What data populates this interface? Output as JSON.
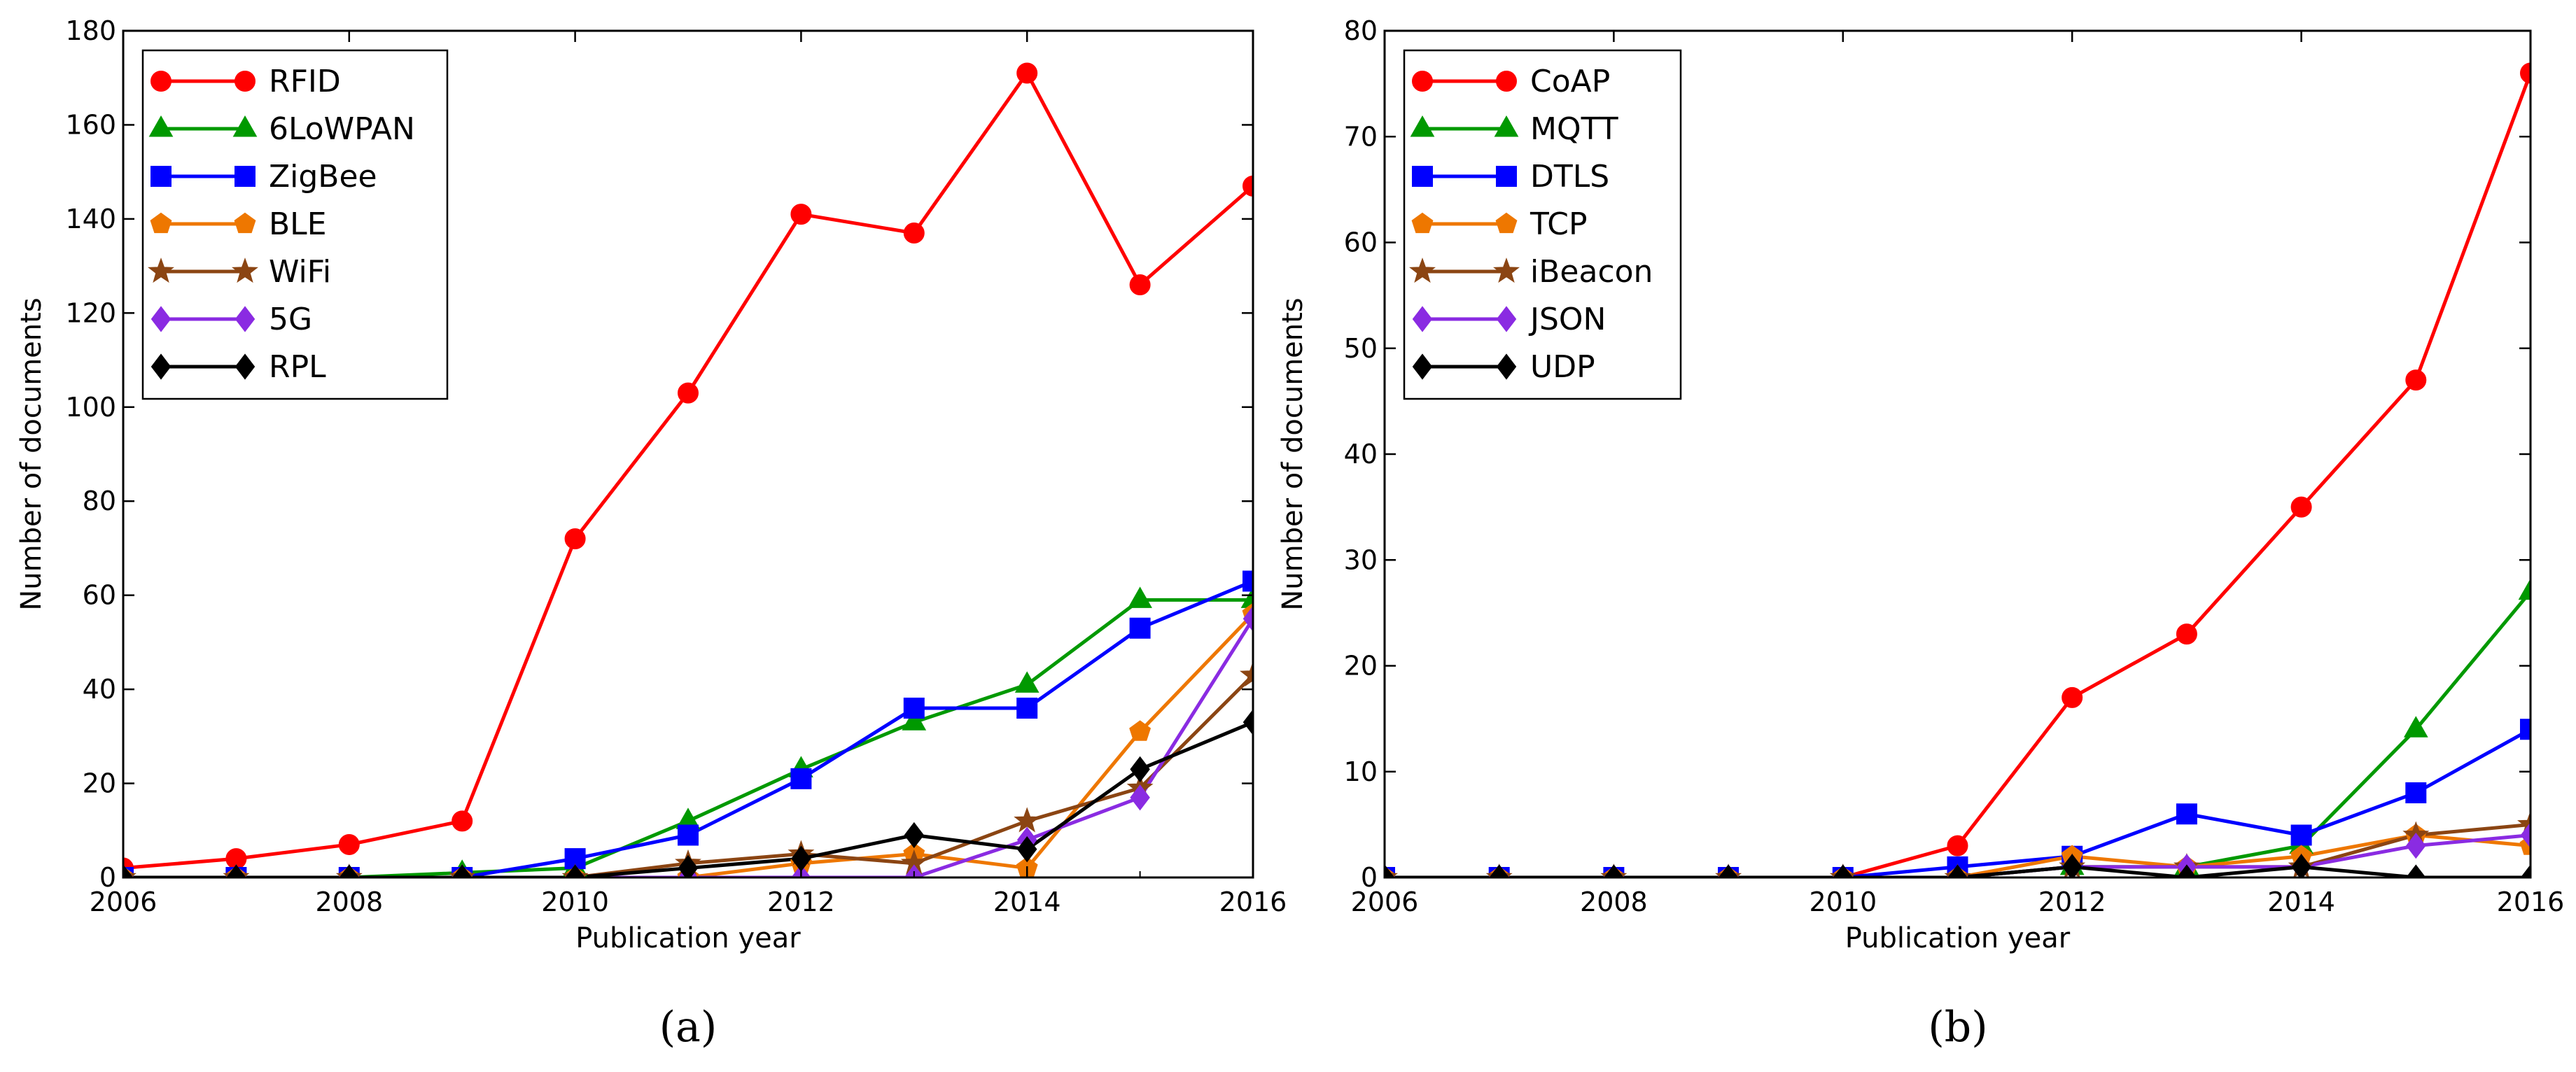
{
  "chart_data": [
    {
      "type": "line",
      "panel_label": "(a)",
      "xlabel": "Publication year",
      "ylabel": "Number of documents",
      "xlim": [
        2006,
        2016
      ],
      "ylim": [
        0,
        180
      ],
      "xticks": [
        "2006",
        "2008",
        "2010",
        "2012",
        "2014",
        "2016"
      ],
      "yticks": [
        "0",
        "20",
        "40",
        "60",
        "80",
        "100",
        "120",
        "140",
        "160",
        "180"
      ],
      "legend_position": "upper-left",
      "x": [
        2006,
        2007,
        2008,
        2009,
        2010,
        2011,
        2012,
        2013,
        2014,
        2015,
        2016
      ],
      "series": [
        {
          "name": "RFID",
          "color": "#ff0000",
          "marker": "circle",
          "values": [
            2,
            4,
            7,
            12,
            72,
            103,
            141,
            137,
            171,
            126,
            147
          ]
        },
        {
          "name": "6LoWPAN",
          "color": "#009900",
          "marker": "triangle",
          "values": [
            0,
            0,
            0,
            1,
            2,
            12,
            23,
            33,
            41,
            59,
            59
          ]
        },
        {
          "name": "ZigBee",
          "color": "#0000ff",
          "marker": "square",
          "values": [
            0,
            0,
            0,
            0,
            4,
            9,
            21,
            36,
            36,
            53,
            63
          ]
        },
        {
          "name": "BLE",
          "color": "#ee7700",
          "marker": "pentagon",
          "values": [
            0,
            0,
            0,
            0,
            0,
            0,
            3,
            5,
            2,
            31,
            56
          ]
        },
        {
          "name": "WiFi",
          "color": "#8b4513",
          "marker": "star",
          "values": [
            0,
            0,
            0,
            0,
            0,
            3,
            5,
            3,
            12,
            19,
            43
          ]
        },
        {
          "name": "5G",
          "color": "#8a2be2",
          "marker": "diamond",
          "values": [
            0,
            0,
            0,
            0,
            0,
            0,
            0,
            0,
            8,
            17,
            55
          ]
        },
        {
          "name": "RPL",
          "color": "#000000",
          "marker": "diamond",
          "values": [
            0,
            0,
            0,
            0,
            0,
            2,
            4,
            9,
            6,
            23,
            33
          ]
        }
      ]
    },
    {
      "type": "line",
      "panel_label": "(b)",
      "xlabel": "Publication year",
      "ylabel": "Number of documents",
      "xlim": [
        2006,
        2016
      ],
      "ylim": [
        0,
        80
      ],
      "xticks": [
        "2006",
        "2008",
        "2010",
        "2012",
        "2014",
        "2016"
      ],
      "yticks": [
        "0",
        "10",
        "20",
        "30",
        "40",
        "50",
        "60",
        "70",
        "80"
      ],
      "legend_position": "upper-left",
      "x": [
        2006,
        2007,
        2008,
        2009,
        2010,
        2011,
        2012,
        2013,
        2014,
        2015,
        2016
      ],
      "series": [
        {
          "name": "CoAP",
          "color": "#ff0000",
          "marker": "circle",
          "values": [
            0,
            0,
            0,
            0,
            0,
            3,
            17,
            23,
            35,
            47,
            76
          ]
        },
        {
          "name": "MQTT",
          "color": "#009900",
          "marker": "triangle",
          "values": [
            0,
            0,
            0,
            0,
            0,
            0,
            1,
            1,
            3,
            14,
            27
          ]
        },
        {
          "name": "DTLS",
          "color": "#0000ff",
          "marker": "square",
          "values": [
            0,
            0,
            0,
            0,
            0,
            1,
            2,
            6,
            4,
            8,
            14
          ]
        },
        {
          "name": "TCP",
          "color": "#ee7700",
          "marker": "pentagon",
          "values": [
            0,
            0,
            0,
            0,
            0,
            0,
            2,
            1,
            2,
            4,
            3
          ]
        },
        {
          "name": "iBeacon",
          "color": "#8b4513",
          "marker": "star",
          "values": [
            0,
            0,
            0,
            0,
            0,
            0,
            1,
            1,
            1,
            4,
            5
          ]
        },
        {
          "name": "JSON",
          "color": "#8a2be2",
          "marker": "diamond",
          "values": [
            0,
            0,
            0,
            0,
            0,
            0,
            1,
            1,
            1,
            3,
            4
          ]
        },
        {
          "name": "UDP",
          "color": "#000000",
          "marker": "diamond",
          "values": [
            0,
            0,
            0,
            0,
            0,
            0,
            1,
            0,
            1,
            0,
            0
          ]
        }
      ]
    }
  ]
}
